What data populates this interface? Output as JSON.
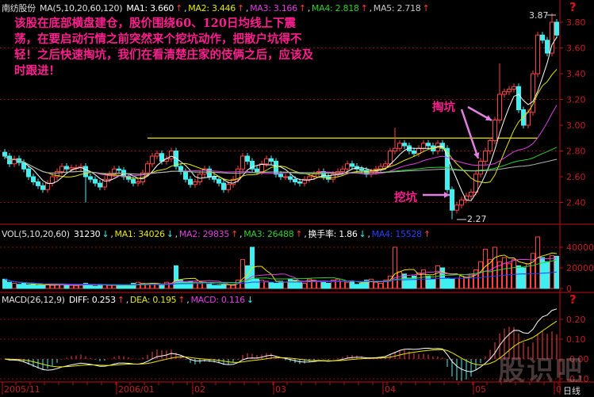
{
  "main_header": {
    "stock_name": "南纺股份",
    "indicator": "MA(5,10,20,60,120)",
    "items": [
      {
        "label": "MA1: 3.660",
        "arrow": "↑",
        "color": "#ffffff"
      },
      {
        "label": "MA2: 3.446",
        "arrow": "↑",
        "color": "#e8e800"
      },
      {
        "label": "MA3: 3.166",
        "arrow": "↑",
        "color": "#e040e0"
      },
      {
        "label": "MA4: 2.818",
        "arrow": "↑",
        "color": "#30d030"
      },
      {
        "label": "MA5: 2.718",
        "arrow": "↑",
        "color": "#c8c8c8"
      }
    ]
  },
  "vol_header": {
    "indicator": "VOL(5,10,20,60)",
    "items": [
      {
        "label": "31230",
        "arrow": "↓",
        "color": "#ffffff"
      },
      {
        "label": "MA1: 34026",
        "arrow": "↓",
        "color": "#e8e800"
      },
      {
        "label": "MA2: 29835",
        "arrow": "↑",
        "color": "#e040e0"
      },
      {
        "label": "MA3: 26488",
        "arrow": "↑",
        "color": "#30d030"
      },
      {
        "label": "换手率: 1.86",
        "arrow": "↓",
        "color": "#ffffff"
      },
      {
        "label": "MA4: 15528",
        "arrow": "↑",
        "color": "#2040ff"
      }
    ]
  },
  "macd_header": {
    "indicator": "MACD(26,12,9)",
    "items": [
      {
        "label": "DIFF: 0.253",
        "arrow": "↑",
        "color": "#ffffff"
      },
      {
        "label": "DEA: 0.195",
        "arrow": "↑",
        "color": "#e8e800"
      },
      {
        "label": "MACD: 0.116",
        "arrow": "↓",
        "color": "#e040e0"
      }
    ]
  },
  "annotation": {
    "note": "该股在底部横盘建仓，股价围绕60、120日均线上下震荡，在要启动行情之前突然来个挖坑动作，把散户坑得不轻！之后快速掏坑，我们在看清楚庄家的伎俩之后，应该及时跟进！",
    "tao_keng": "掏坑",
    "wa_keng": "挖坑",
    "high_label": "3.87",
    "low_label": "2.27"
  },
  "help_icon": "?",
  "period_label": "日线",
  "watermark": "股识吧",
  "colors": {
    "up": "#ff4040",
    "down": "#40f0f0",
    "axis": "#c01010",
    "annotation": "#ff1f8f",
    "ref_line": "#e8e800"
  },
  "chart_data": [
    {
      "type": "candlestick",
      "title": "",
      "price_axis": {
        "ticks": [
          "3.80",
          "3.60",
          "3.40",
          "3.20",
          "3.00",
          "2.80",
          "2.60",
          "2.40"
        ],
        "range": [
          2.2,
          3.95
        ]
      },
      "reference_line": {
        "value": 2.9,
        "from_index": 30,
        "to_index": 112
      },
      "moving_averages": [
        5,
        10,
        20,
        60,
        120
      ],
      "date_ticks": [
        {
          "label": "2005/11",
          "index": 0
        },
        {
          "label": "2006/01",
          "index": 24
        },
        {
          "label": "02",
          "index": 40
        },
        {
          "label": "03",
          "index": 57
        },
        {
          "label": "04",
          "index": 80
        },
        {
          "label": "05",
          "index": 99
        },
        {
          "label": "0",
          "index": 116
        }
      ],
      "close": [
        2.76,
        2.7,
        2.74,
        2.71,
        2.66,
        2.6,
        2.56,
        2.53,
        2.5,
        2.55,
        2.6,
        2.64,
        2.68,
        2.66,
        2.67,
        2.67,
        2.68,
        2.6,
        2.58,
        2.55,
        2.52,
        2.58,
        2.62,
        2.66,
        2.65,
        2.6,
        2.58,
        2.55,
        2.56,
        2.63,
        2.7,
        2.76,
        2.78,
        2.72,
        2.74,
        2.8,
        2.68,
        2.64,
        2.58,
        2.54,
        2.56,
        2.62,
        2.66,
        2.6,
        2.58,
        2.55,
        2.5,
        2.54,
        2.58,
        2.66,
        2.76,
        2.72,
        2.66,
        2.64,
        2.7,
        2.74,
        2.72,
        2.62,
        2.6,
        2.6,
        2.58,
        2.56,
        2.55,
        2.58,
        2.6,
        2.62,
        2.64,
        2.6,
        2.58,
        2.62,
        2.64,
        2.66,
        2.7,
        2.68,
        2.66,
        2.65,
        2.62,
        2.64,
        2.66,
        2.68,
        2.7,
        2.8,
        2.82,
        2.86,
        2.84,
        2.8,
        2.78,
        2.82,
        2.86,
        2.84,
        2.8,
        2.86,
        2.82,
        2.5,
        2.34,
        2.38,
        2.42,
        2.45,
        2.48,
        2.62,
        2.72,
        2.8,
        2.88,
        3.04,
        3.24,
        3.26,
        3.28,
        3.3,
        3.12,
        3.0,
        3.1,
        3.4,
        3.7,
        3.66,
        3.56,
        3.8,
        3.7
      ],
      "volume": [
        9000,
        6000,
        5000,
        4000,
        5000,
        3500,
        4000,
        3000,
        3000,
        4000,
        3000,
        3500,
        4000,
        3000,
        3000,
        2500,
        3500,
        5000,
        3000,
        2000,
        4000,
        3500,
        3000,
        3000,
        2500,
        3000,
        3500,
        5000,
        6000,
        5000,
        4000,
        5000,
        4500,
        3000,
        6000,
        5000,
        22000,
        8000,
        6000,
        7000,
        6000,
        5000,
        6000,
        4500,
        3000,
        3000,
        4500,
        3500,
        3000,
        8000,
        28000,
        22000,
        40000,
        9000,
        8000,
        7000,
        6000,
        5000,
        7000,
        6000,
        9000,
        8000,
        6000,
        5000,
        9000,
        8000,
        7000,
        6000,
        5000,
        8000,
        9000,
        7000,
        6000,
        7000,
        4000,
        5000,
        8000,
        9000,
        6000,
        5000,
        8000,
        12000,
        40000,
        16000,
        14000,
        10000,
        12000,
        15000,
        18000,
        12000,
        9000,
        22000,
        20000,
        10000,
        9000,
        10000,
        12000,
        11000,
        14000,
        18000,
        26000,
        38000,
        28000,
        40000,
        26000,
        30000,
        24000,
        28000,
        22000,
        20000,
        24000,
        34000,
        50000,
        30000,
        26000,
        32000,
        31230
      ]
    }
  ],
  "vol_axis": {
    "ticks": [
      "40000",
      "20000",
      "0"
    ]
  },
  "macd_axis": {
    "ticks": [
      "0.20",
      "0.10",
      "-0.00",
      "-0.10"
    ]
  }
}
